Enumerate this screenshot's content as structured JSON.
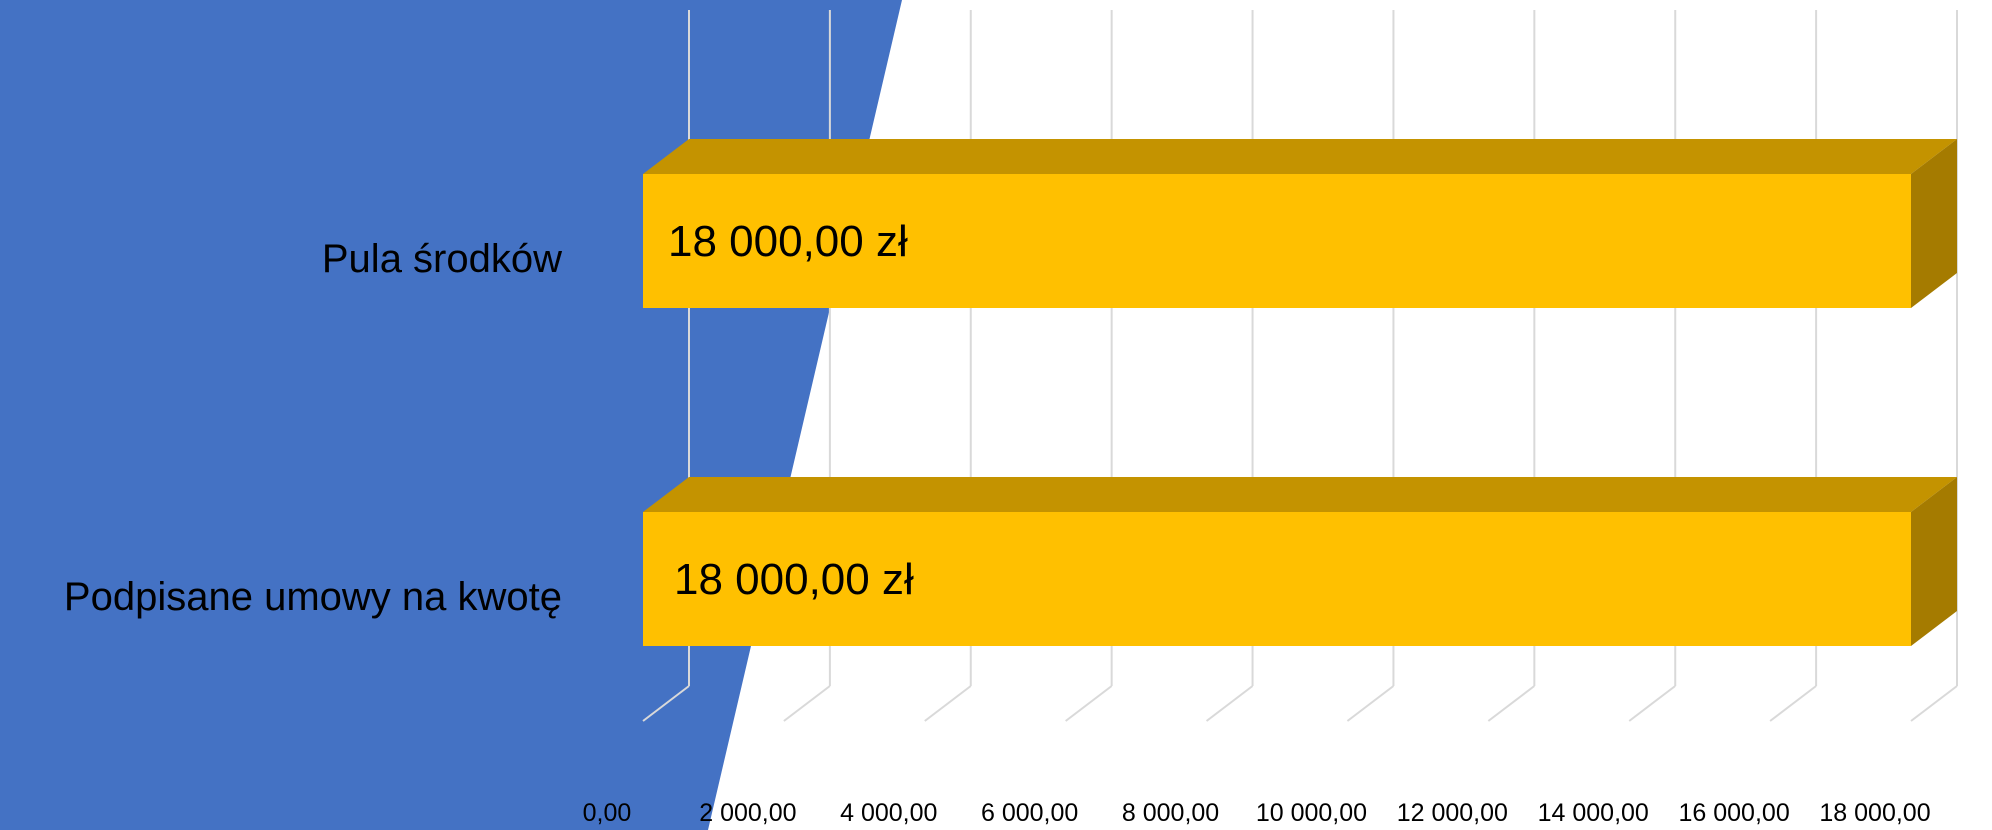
{
  "chart_data": {
    "type": "bar",
    "orientation": "horizontal",
    "three_d": true,
    "categories": [
      "Pula środków",
      "Podpisane umowy na kwotę"
    ],
    "values": [
      18000,
      18000
    ],
    "data_labels": [
      "18 000,00 zł",
      "18 000,00 zł"
    ],
    "xlim": [
      0,
      18000
    ],
    "x_ticks": [
      0,
      2000,
      4000,
      6000,
      8000,
      10000,
      12000,
      14000,
      16000,
      18000
    ],
    "x_tick_labels": [
      "0,00",
      "2 000,00",
      "4 000,00",
      "6 000,00",
      "8 000,00",
      "10 000,00",
      "12 000,00",
      "14 000,00",
      "16 000,00",
      "18 000,00"
    ],
    "grid": true,
    "bar_color": "#FFC000",
    "bar_top_color": "#C49300",
    "bar_side_color": "#A57B00",
    "background_shape_color": "#4472C4",
    "gridline_color": "#D9D9D9"
  }
}
